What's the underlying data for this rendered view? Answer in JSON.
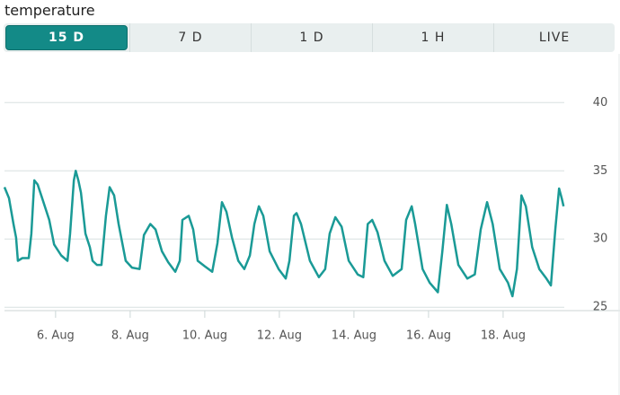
{
  "widget": {
    "title": "temperature",
    "tabs": [
      "15 D",
      "7 D",
      "1 D",
      "1 H",
      "LIVE"
    ],
    "selected_tab": 0
  },
  "chart_data": {
    "type": "line",
    "x": [
      4.63,
      4.75,
      4.87,
      4.94,
      4.99,
      5.11,
      5.28,
      5.35,
      5.43,
      5.52,
      5.64,
      5.83,
      5.96,
      6.15,
      6.32,
      6.39,
      6.49,
      6.54,
      6.61,
      6.68,
      6.8,
      6.92,
      6.99,
      7.11,
      7.23,
      7.35,
      7.45,
      7.57,
      7.69,
      7.88,
      8.05,
      8.25,
      8.37,
      8.54,
      8.68,
      8.85,
      9.02,
      9.21,
      9.33,
      9.4,
      9.57,
      9.69,
      9.81,
      10.0,
      10.2,
      10.34,
      10.46,
      10.58,
      10.73,
      10.9,
      11.06,
      11.21,
      11.33,
      11.45,
      11.57,
      11.74,
      11.98,
      12.17,
      12.27,
      12.39,
      12.46,
      12.58,
      12.82,
      13.06,
      13.23,
      13.35,
      13.5,
      13.67,
      13.86,
      14.1,
      14.25,
      14.37,
      14.49,
      14.63,
      14.82,
      15.04,
      15.28,
      15.4,
      15.55,
      15.64,
      15.84,
      16.03,
      16.25,
      16.37,
      16.49,
      16.61,
      16.8,
      17.04,
      17.24,
      17.4,
      17.57,
      17.72,
      17.91,
      18.13,
      18.25,
      18.37,
      18.49,
      18.61,
      18.78,
      18.97,
      19.16,
      19.28,
      19.4,
      19.5,
      19.57,
      19.62
    ],
    "series": [
      {
        "name": "temperature",
        "color": "#1a9a96",
        "values": [
          33.8,
          33.0,
          31.1,
          30.1,
          28.4,
          28.6,
          28.6,
          30.4,
          34.3,
          34.0,
          33.0,
          31.4,
          29.6,
          28.8,
          28.4,
          30.4,
          34.3,
          35.0,
          34.3,
          33.4,
          30.4,
          29.4,
          28.4,
          28.1,
          28.1,
          31.7,
          33.8,
          33.2,
          31.1,
          28.4,
          27.9,
          27.8,
          30.3,
          31.1,
          30.7,
          29.1,
          28.3,
          27.6,
          28.4,
          31.4,
          31.7,
          30.7,
          28.4,
          28.0,
          27.6,
          29.7,
          32.7,
          32.0,
          30.1,
          28.4,
          27.8,
          28.8,
          31.1,
          32.4,
          31.7,
          29.1,
          27.8,
          27.1,
          28.4,
          31.7,
          31.9,
          31.1,
          28.4,
          27.2,
          27.8,
          30.4,
          31.6,
          30.9,
          28.4,
          27.4,
          27.2,
          31.1,
          31.4,
          30.5,
          28.4,
          27.3,
          27.8,
          31.4,
          32.4,
          31.1,
          27.8,
          26.8,
          26.1,
          29.1,
          32.5,
          31.1,
          28.1,
          27.1,
          27.4,
          30.7,
          32.7,
          31.1,
          27.8,
          26.8,
          25.8,
          27.8,
          33.2,
          32.4,
          29.4,
          27.8,
          27.1,
          26.6,
          30.7,
          33.7,
          33.0,
          32.4
        ]
      }
    ],
    "xlim": [
      4.63,
      19.64
    ],
    "xticks": [
      {
        "value": 6,
        "label": "6. Aug"
      },
      {
        "value": 8,
        "label": "8. Aug"
      },
      {
        "value": 10,
        "label": "10. Aug"
      },
      {
        "value": 12,
        "label": "12. Aug"
      },
      {
        "value": 14,
        "label": "14. Aug"
      },
      {
        "value": 16,
        "label": "16. Aug"
      },
      {
        "value": 18,
        "label": "18. Aug"
      }
    ],
    "ylim": [
      24.75,
      41.6
    ],
    "yticks": [
      25,
      30,
      35,
      40
    ],
    "grid": true
  }
}
